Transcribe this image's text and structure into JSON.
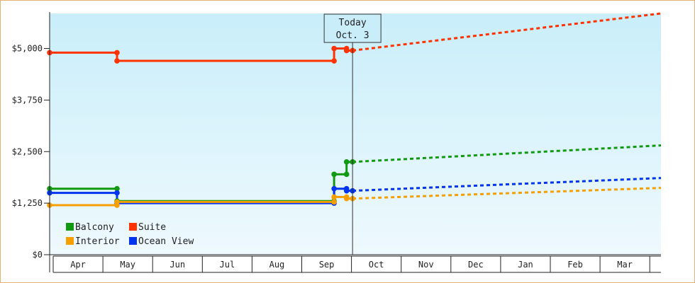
{
  "chart_data": {
    "type": "line",
    "title": "",
    "xlabel": "",
    "ylabel": "",
    "x_categories": [
      "Apr",
      "May",
      "Jun",
      "Jul",
      "Aug",
      "Sep",
      "Oct",
      "Nov",
      "Dec",
      "Jan",
      "Feb",
      "Mar"
    ],
    "y_ticks": [
      "$0",
      "$1,250",
      "$2,500",
      "$3,750",
      "$5,000"
    ],
    "y_tick_values": [
      0,
      1250,
      2500,
      3750,
      5000
    ],
    "ylim": [
      0,
      5850
    ],
    "x_range_months": [
      0,
      12.25
    ],
    "grid": false,
    "legend_position": "bottom-left",
    "today": {
      "line1": "Today",
      "line2": "Oct. 3",
      "x": 6.07
    },
    "series": [
      {
        "name": "Suite",
        "color": "#ff3300",
        "line": [
          [
            0.0,
            4900
          ],
          [
            1.35,
            4900
          ],
          [
            1.35,
            4700
          ],
          [
            5.7,
            4700
          ],
          [
            5.7,
            5000
          ],
          [
            5.95,
            5000
          ],
          [
            5.95,
            4950
          ],
          [
            6.07,
            4950
          ]
        ],
        "points": [
          [
            0.0,
            4900
          ],
          [
            1.35,
            4900
          ],
          [
            1.35,
            4700
          ],
          [
            5.7,
            4700
          ],
          [
            5.7,
            5000
          ],
          [
            5.95,
            5000
          ],
          [
            5.95,
            4950
          ],
          [
            6.07,
            4950
          ]
        ],
        "forecast": [
          [
            6.07,
            4950
          ],
          [
            12.25,
            5850
          ]
        ]
      },
      {
        "name": "Balcony",
        "color": "#119911",
        "line": [
          [
            0.0,
            1600
          ],
          [
            1.35,
            1600
          ],
          [
            1.35,
            1300
          ],
          [
            5.7,
            1300
          ],
          [
            5.7,
            1950
          ],
          [
            5.95,
            1950
          ],
          [
            5.95,
            2250
          ],
          [
            6.07,
            2250
          ]
        ],
        "points": [
          [
            0.0,
            1600
          ],
          [
            1.35,
            1600
          ],
          [
            1.35,
            1300
          ],
          [
            5.7,
            1300
          ],
          [
            5.7,
            1950
          ],
          [
            5.95,
            1950
          ],
          [
            5.95,
            2250
          ],
          [
            6.07,
            2250
          ]
        ],
        "forecast": [
          [
            6.07,
            2250
          ],
          [
            12.25,
            2650
          ]
        ]
      },
      {
        "name": "Ocean View",
        "color": "#0033ee",
        "line": [
          [
            0.0,
            1500
          ],
          [
            1.35,
            1500
          ],
          [
            1.35,
            1250
          ],
          [
            5.7,
            1250
          ],
          [
            5.7,
            1600
          ],
          [
            5.95,
            1600
          ],
          [
            5.95,
            1550
          ],
          [
            6.07,
            1550
          ]
        ],
        "points": [
          [
            0.0,
            1500
          ],
          [
            1.35,
            1500
          ],
          [
            1.35,
            1250
          ],
          [
            5.7,
            1250
          ],
          [
            5.7,
            1600
          ],
          [
            5.95,
            1600
          ],
          [
            5.95,
            1550
          ],
          [
            6.07,
            1550
          ]
        ],
        "forecast": [
          [
            6.07,
            1550
          ],
          [
            12.25,
            1860
          ]
        ]
      },
      {
        "name": "Interior",
        "color": "#f5a000",
        "line": [
          [
            0.0,
            1200
          ],
          [
            1.35,
            1200
          ],
          [
            1.35,
            1280
          ],
          [
            5.7,
            1280
          ],
          [
            5.7,
            1400
          ],
          [
            5.95,
            1400
          ],
          [
            5.95,
            1360
          ],
          [
            6.07,
            1360
          ]
        ],
        "points": [
          [
            0.0,
            1200
          ],
          [
            1.35,
            1200
          ],
          [
            1.35,
            1280
          ],
          [
            5.7,
            1280
          ],
          [
            5.7,
            1400
          ],
          [
            5.95,
            1400
          ],
          [
            5.95,
            1360
          ],
          [
            6.07,
            1360
          ]
        ],
        "forecast": [
          [
            6.07,
            1360
          ],
          [
            12.25,
            1620
          ]
        ]
      }
    ],
    "legend": [
      {
        "name": "Balcony",
        "color": "#119911"
      },
      {
        "name": "Suite",
        "color": "#ff3300"
      },
      {
        "name": "Interior",
        "color": "#f5a000"
      },
      {
        "name": "Ocean View",
        "color": "#0033ee"
      }
    ],
    "colors": {
      "plot_top": "#c9eefa",
      "plot_bottom": "#eef9fd",
      "axis": "#222222",
      "frame_border": "#e8b070"
    }
  }
}
